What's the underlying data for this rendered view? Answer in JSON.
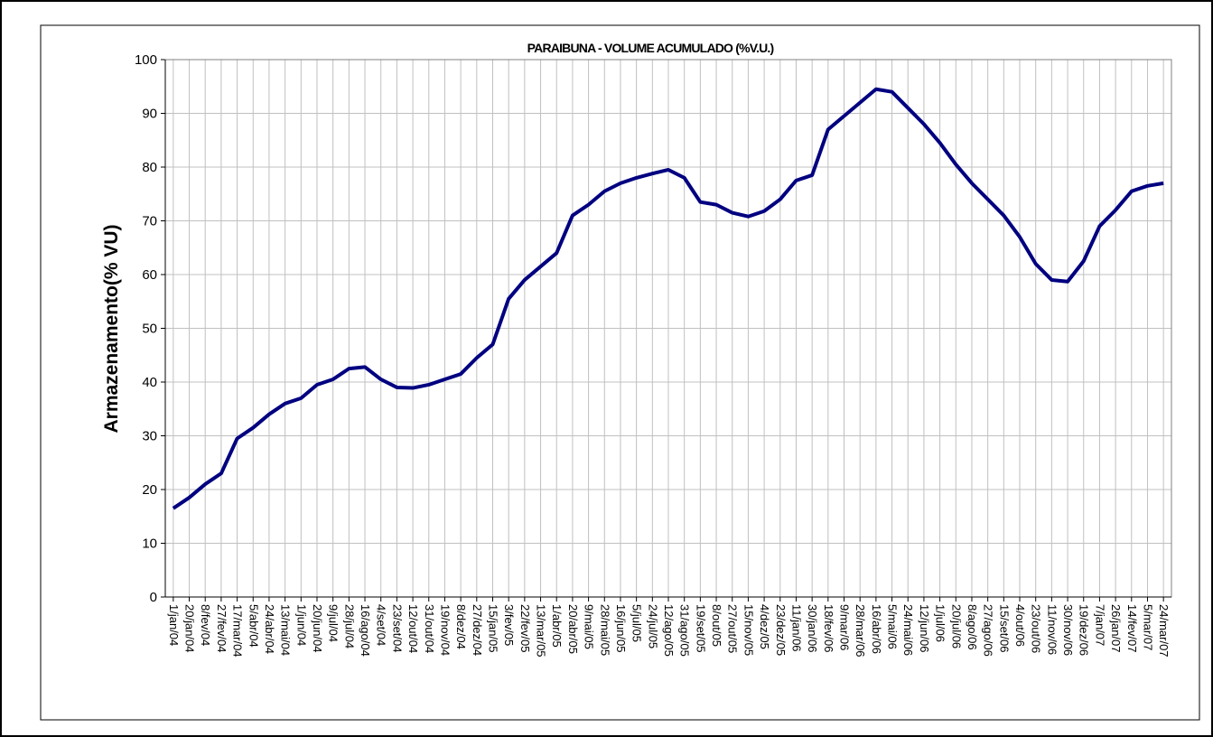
{
  "chart_data": {
    "type": "line",
    "title": "PARAIBUNA - VOLUME ACUMULADO (%V.U.)",
    "y_label": "Armazenamento(% VU)",
    "categories": [
      "1/jan/04",
      "20/jan/04",
      "8/fev/04",
      "27/fev/04",
      "17/mar/04",
      "5/abr/04",
      "24/abr/04",
      "13/mai/04",
      "1/jun/04",
      "20/jun/04",
      "9/jul/04",
      "28/jul/04",
      "16/ago/04",
      "4/set/04",
      "23/set/04",
      "12/out/04",
      "31/out/04",
      "19/nov/04",
      "8/dez/04",
      "27/dez/04",
      "15/jan/05",
      "3/fev/05",
      "22/fev/05",
      "13/mar/05",
      "1/abr/05",
      "20/abr/05",
      "9/mai/05",
      "28/mai/05",
      "16/jun/05",
      "5/jul/05",
      "24/jul/05",
      "12/ago/05",
      "31/ago/05",
      "19/set/05",
      "8/out/05",
      "27/out/05",
      "15/nov/05",
      "4/dez/05",
      "23/dez/05",
      "11/jan/06",
      "30/jan/06",
      "18/fev/06",
      "9/mar/06",
      "28/mar/06",
      "16/abr/06",
      "5/mai/06",
      "24/mai/06",
      "12/jun/06",
      "1/jul/06",
      "20/jul/06",
      "8/ago/06",
      "27/ago/06",
      "15/set/06",
      "4/out/06",
      "23/out/06",
      "11/nov/06",
      "30/nov/06",
      "19/dez/06",
      "7/jan/07",
      "26/jan/07",
      "14/fev/07",
      "5/mar/07",
      "24/mar/07"
    ],
    "series": [
      {
        "name": "Armazenamento",
        "color": "#000080",
        "values": [
          16.5,
          18.5,
          21,
          23,
          29.5,
          31.5,
          34,
          36,
          37,
          39.5,
          40.5,
          42.5,
          42.8,
          40.5,
          39,
          38.9,
          39.5,
          40.5,
          41.5,
          44.5,
          47,
          55.5,
          59,
          61.5,
          64,
          71,
          73,
          75.5,
          77,
          78,
          78.8,
          79.5,
          78,
          73.5,
          73,
          71.5,
          70.8,
          71.8,
          74,
          77.5,
          78.5,
          87,
          89.5,
          92,
          94.5,
          94,
          91,
          88,
          84.5,
          80.5,
          77,
          74,
          71,
          67,
          62,
          59,
          58.7,
          62.5,
          69,
          72,
          75.5,
          76.5,
          77
        ]
      }
    ],
    "ylim": [
      0,
      100
    ],
    "yticks": [
      0,
      10,
      20,
      30,
      40,
      50,
      60,
      70,
      80,
      90,
      100
    ],
    "grid": true
  }
}
